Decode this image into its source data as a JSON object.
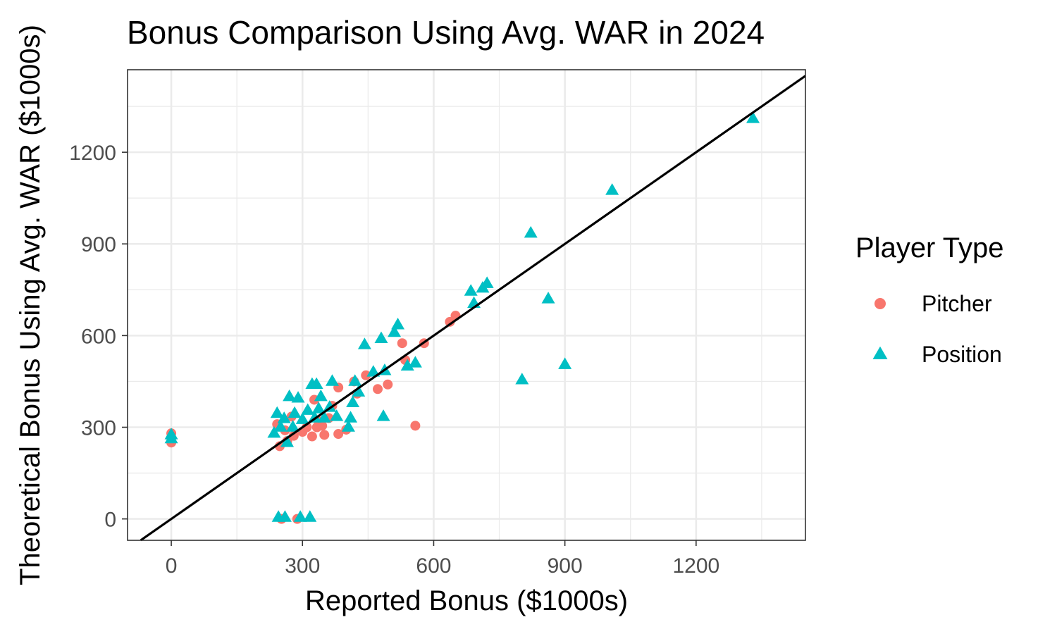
{
  "chart_data": {
    "type": "scatter",
    "title": "Bonus Comparison Using Avg. WAR in 2024",
    "xlabel": "Reported Bonus ($1000s)",
    "ylabel": "Theoretical Bonus Using Avg. WAR ($1000s)",
    "xlim": [
      -100,
      1450
    ],
    "ylim": [
      -70,
      1470
    ],
    "x_ticks": [
      0,
      300,
      600,
      900,
      1200
    ],
    "y_ticks": [
      0,
      300,
      600,
      900,
      1200
    ],
    "x_tick_labels": [
      "0",
      "300",
      "600",
      "900",
      "1200"
    ],
    "y_tick_labels": [
      "0",
      "300",
      "600",
      "900",
      "1200"
    ],
    "grid": true,
    "reference_line": {
      "slope": 1,
      "intercept": 0,
      "color": "#000000"
    },
    "legend": {
      "title": "Player Type",
      "position": "right"
    },
    "series": [
      {
        "name": "Pitcher",
        "marker": "circle",
        "color": "#F8766D",
        "points": [
          [
            0,
            280
          ],
          [
            0,
            265
          ],
          [
            0,
            250
          ],
          [
            242,
            310
          ],
          [
            248,
            238
          ],
          [
            252,
            0
          ],
          [
            260,
            290
          ],
          [
            265,
            255
          ],
          [
            275,
            335
          ],
          [
            280,
            272
          ],
          [
            288,
            0
          ],
          [
            300,
            285
          ],
          [
            310,
            300
          ],
          [
            322,
            270
          ],
          [
            327,
            390
          ],
          [
            333,
            300
          ],
          [
            337,
            320
          ],
          [
            345,
            305
          ],
          [
            350,
            275
          ],
          [
            360,
            330
          ],
          [
            368,
            370
          ],
          [
            382,
            430
          ],
          [
            382,
            278
          ],
          [
            400,
            292
          ],
          [
            418,
            450
          ],
          [
            425,
            410
          ],
          [
            445,
            470
          ],
          [
            472,
            425
          ],
          [
            495,
            440
          ],
          [
            528,
            575
          ],
          [
            535,
            520
          ],
          [
            558,
            305
          ],
          [
            578,
            575
          ],
          [
            637,
            645
          ],
          [
            650,
            665
          ]
        ]
      },
      {
        "name": "Position",
        "marker": "triangle",
        "color": "#00BFC4",
        "points": [
          [
            0,
            275
          ],
          [
            0,
            262
          ],
          [
            235,
            280
          ],
          [
            242,
            345
          ],
          [
            245,
            5
          ],
          [
            250,
            300
          ],
          [
            258,
            328
          ],
          [
            260,
            5
          ],
          [
            265,
            250
          ],
          [
            270,
            400
          ],
          [
            278,
            300
          ],
          [
            282,
            345
          ],
          [
            290,
            395
          ],
          [
            295,
            5
          ],
          [
            300,
            325
          ],
          [
            312,
            355
          ],
          [
            317,
            5
          ],
          [
            322,
            440
          ],
          [
            328,
            330
          ],
          [
            332,
            440
          ],
          [
            337,
            360
          ],
          [
            342,
            400
          ],
          [
            350,
            330
          ],
          [
            362,
            365
          ],
          [
            368,
            450
          ],
          [
            378,
            335
          ],
          [
            405,
            300
          ],
          [
            410,
            330
          ],
          [
            415,
            380
          ],
          [
            420,
            450
          ],
          [
            428,
            415
          ],
          [
            442,
            570
          ],
          [
            462,
            480
          ],
          [
            480,
            590
          ],
          [
            485,
            335
          ],
          [
            488,
            485
          ],
          [
            510,
            610
          ],
          [
            518,
            635
          ],
          [
            540,
            500
          ],
          [
            558,
            510
          ],
          [
            685,
            745
          ],
          [
            692,
            705
          ],
          [
            712,
            755
          ],
          [
            722,
            770
          ],
          [
            802,
            455
          ],
          [
            822,
            935
          ],
          [
            862,
            720
          ],
          [
            900,
            505
          ],
          [
            1008,
            1075
          ],
          [
            1330,
            1310
          ]
        ]
      }
    ]
  }
}
